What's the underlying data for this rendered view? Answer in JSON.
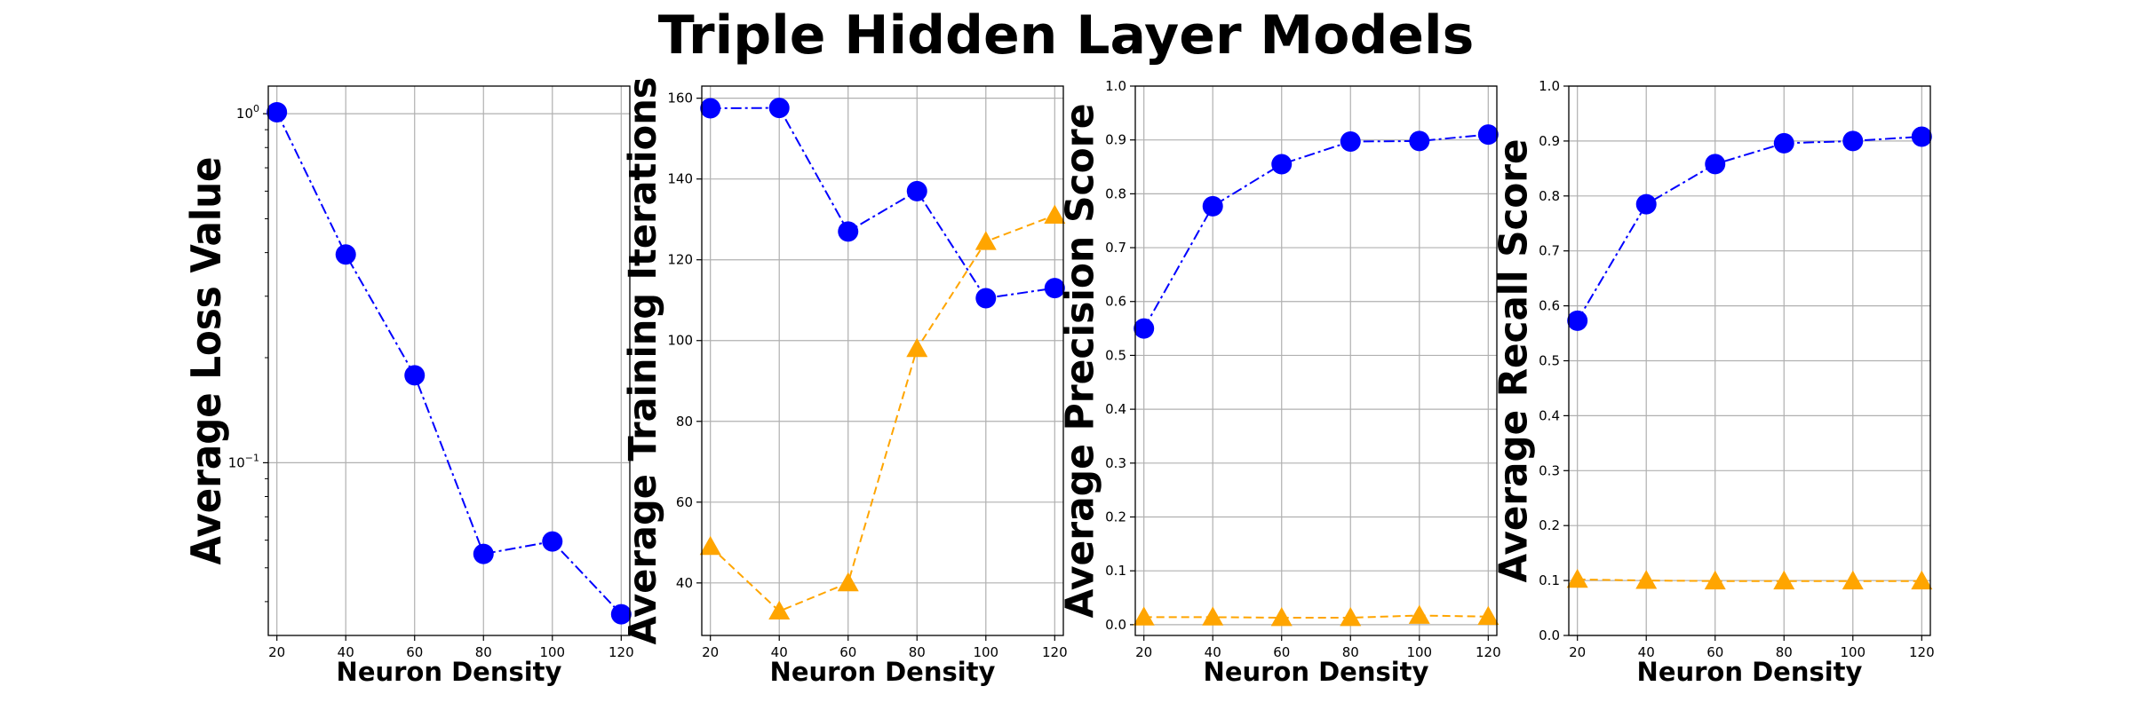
{
  "figure": {
    "title": "Triple Hidden Layer Models"
  },
  "chart_data": [
    {
      "type": "line",
      "title": "",
      "xlabel": "Neuron Density",
      "ylabel": "Average Loss Value",
      "yscale": "log",
      "xlim": [
        17.5,
        122.5
      ],
      "ylim": [
        0.032,
        1.2
      ],
      "xticks": [
        20,
        40,
        60,
        80,
        100,
        120
      ],
      "yticks": [
        {
          "value": 1,
          "label": "10^0"
        },
        {
          "value": 0.1,
          "label": "10^-1"
        }
      ],
      "grid": true,
      "x": [
        20,
        40,
        60,
        80,
        100,
        120
      ],
      "series": [
        {
          "values": [
            1.01,
            0.395,
            0.178,
            0.0548,
            0.0595,
            0.0368
          ],
          "color": "#0000ff",
          "line": "dashdot",
          "marker": "circle"
        }
      ]
    },
    {
      "type": "line",
      "title": "",
      "xlabel": "Neuron Density",
      "ylabel": "Average Training Iterations",
      "xlim": [
        17.5,
        122.5
      ],
      "ylim": [
        27,
        163
      ],
      "xticks": [
        20,
        40,
        60,
        80,
        100,
        120
      ],
      "yticks": [
        {
          "value": 40,
          "label": "40"
        },
        {
          "value": 60,
          "label": "60"
        },
        {
          "value": 80,
          "label": "80"
        },
        {
          "value": 100,
          "label": "100"
        },
        {
          "value": 120,
          "label": "120"
        },
        {
          "value": 140,
          "label": "140"
        },
        {
          "value": 160,
          "label": "160"
        }
      ],
      "grid": true,
      "x": [
        20,
        40,
        60,
        80,
        100,
        120
      ],
      "series": [
        {
          "values": [
            157.5,
            157.6,
            127,
            137,
            110.5,
            113
          ],
          "color": "#0000ff",
          "line": "dashdot",
          "marker": "circle"
        },
        {
          "values": [
            49,
            33,
            40,
            98,
            124.5,
            131
          ],
          "color": "#ffa500",
          "line": "dashed",
          "marker": "triangle"
        }
      ]
    },
    {
      "type": "line",
      "title": "",
      "xlabel": "Neuron Density",
      "ylabel": "Average Precision Score",
      "xlim": [
        17.5,
        122.5
      ],
      "ylim": [
        -0.02,
        1.0
      ],
      "xticks": [
        20,
        40,
        60,
        80,
        100,
        120
      ],
      "yticks": [
        {
          "value": 0.0,
          "label": "0.0"
        },
        {
          "value": 0.1,
          "label": "0.1"
        },
        {
          "value": 0.2,
          "label": "0.2"
        },
        {
          "value": 0.3,
          "label": "0.3"
        },
        {
          "value": 0.4,
          "label": "0.4"
        },
        {
          "value": 0.5,
          "label": "0.5"
        },
        {
          "value": 0.6,
          "label": "0.6"
        },
        {
          "value": 0.7,
          "label": "0.7"
        },
        {
          "value": 0.8,
          "label": "0.8"
        },
        {
          "value": 0.9,
          "label": "0.9"
        },
        {
          "value": 1.0,
          "label": "1.0"
        }
      ],
      "grid": true,
      "x": [
        20,
        40,
        60,
        80,
        100,
        120
      ],
      "series": [
        {
          "values": [
            0.55,
            0.777,
            0.855,
            0.897,
            0.898,
            0.91
          ],
          "color": "#0000ff",
          "line": "dashdot",
          "marker": "circle"
        },
        {
          "values": [
            0.014,
            0.014,
            0.013,
            0.013,
            0.017,
            0.015
          ],
          "color": "#ffa500",
          "line": "dashed",
          "marker": "triangle"
        }
      ]
    },
    {
      "type": "line",
      "title": "",
      "xlabel": "Neuron Density",
      "ylabel": "Average Recall Score",
      "xlim": [
        17.5,
        122.5
      ],
      "ylim": [
        0.0,
        1.0
      ],
      "xticks": [
        20,
        40,
        60,
        80,
        100,
        120
      ],
      "yticks": [
        {
          "value": 0.0,
          "label": "0.0"
        },
        {
          "value": 0.1,
          "label": "0.1"
        },
        {
          "value": 0.2,
          "label": "0.2"
        },
        {
          "value": 0.3,
          "label": "0.3"
        },
        {
          "value": 0.4,
          "label": "0.4"
        },
        {
          "value": 0.5,
          "label": "0.5"
        },
        {
          "value": 0.6,
          "label": "0.6"
        },
        {
          "value": 0.7,
          "label": "0.7"
        },
        {
          "value": 0.8,
          "label": "0.8"
        },
        {
          "value": 0.9,
          "label": "0.9"
        },
        {
          "value": 1.0,
          "label": "1.0"
        }
      ],
      "grid": true,
      "x": [
        20,
        40,
        60,
        80,
        100,
        120
      ],
      "series": [
        {
          "values": [
            0.573,
            0.785,
            0.858,
            0.896,
            0.9,
            0.908
          ],
          "color": "#0000ff",
          "line": "dashdot",
          "marker": "circle"
        },
        {
          "values": [
            0.102,
            0.1,
            0.099,
            0.099,
            0.099,
            0.099
          ],
          "color": "#ffa500",
          "line": "dashed",
          "marker": "triangle"
        }
      ]
    }
  ]
}
